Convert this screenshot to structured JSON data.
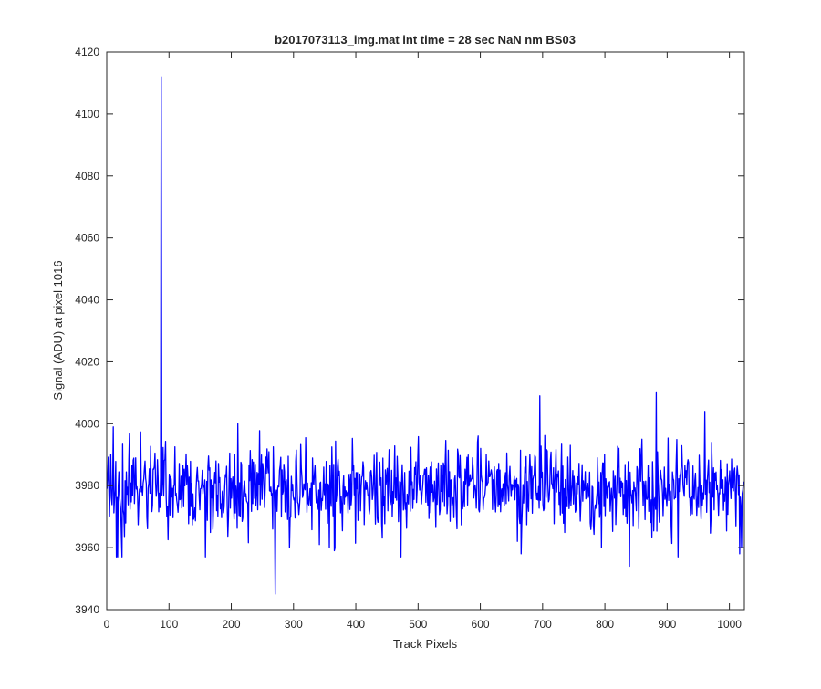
{
  "chart_data": {
    "type": "line",
    "title": "b2017073113_img.mat int time = 28 sec  NaN nm BS03",
    "xlabel": "Track Pixels",
    "ylabel": "Signal (ADU) at pixel 1016",
    "xlim": [
      0,
      1024
    ],
    "ylim": [
      3940,
      4120
    ],
    "xticks": [
      "0",
      "100",
      "200",
      "300",
      "400",
      "500",
      "600",
      "700",
      "800",
      "900",
      "1000"
    ],
    "yticks": [
      "3940",
      "3960",
      "3980",
      "4000",
      "4020",
      "4040",
      "4060",
      "4080",
      "4100",
      "4120"
    ],
    "grid": false,
    "legend": false,
    "line_color": "#0000ff",
    "series": [
      {
        "generator": "noise",
        "n_points": 1024,
        "mean": 3979,
        "spread": 6.5,
        "min": 3945,
        "max": 4112,
        "notable_points": [
          {
            "x": 10,
            "y": 3999
          },
          {
            "x": 15,
            "y": 3957
          },
          {
            "x": 17,
            "y": 3957
          },
          {
            "x": 24,
            "y": 3957
          },
          {
            "x": 87,
            "y": 4112
          },
          {
            "x": 158,
            "y": 3957
          },
          {
            "x": 210,
            "y": 4000
          },
          {
            "x": 266,
            "y": 3966
          },
          {
            "x": 270,
            "y": 3945
          },
          {
            "x": 293,
            "y": 3960
          },
          {
            "x": 341,
            "y": 3961
          },
          {
            "x": 365,
            "y": 3959
          },
          {
            "x": 472,
            "y": 3957
          },
          {
            "x": 665,
            "y": 3958
          },
          {
            "x": 695,
            "y": 4009
          },
          {
            "x": 794,
            "y": 3960
          },
          {
            "x": 839,
            "y": 3954
          },
          {
            "x": 882,
            "y": 4010
          },
          {
            "x": 917,
            "y": 3957
          },
          {
            "x": 960,
            "y": 4004
          },
          {
            "x": 1016,
            "y": 3958
          },
          {
            "x": 1019,
            "y": 3960
          }
        ]
      }
    ]
  }
}
